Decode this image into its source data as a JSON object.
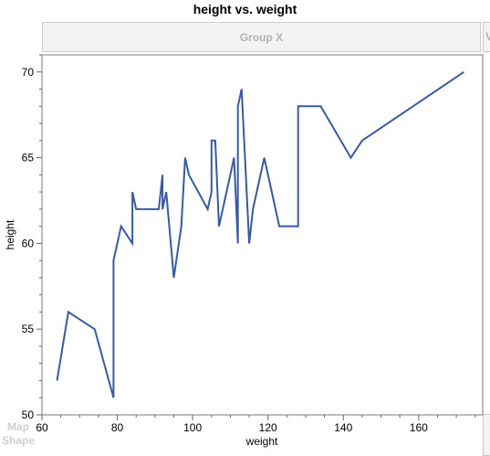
{
  "chart_data": {
    "type": "line",
    "title": "height vs. weight",
    "group_label": "Group X",
    "right_stub_label": "V",
    "map_shape_label_1": "Map",
    "map_shape_label_2": "Shape",
    "xlabel": "weight",
    "ylabel": "height",
    "xlim": [
      60,
      177
    ],
    "ylim": [
      50,
      71
    ],
    "xticks": [
      60,
      80,
      100,
      120,
      140,
      160
    ],
    "yticks": [
      50,
      55,
      60,
      65,
      70
    ],
    "grid": false,
    "line_color": "#3a5aa0",
    "series": [
      {
        "x": [
          64,
          67,
          74,
          79,
          79,
          81,
          84,
          84,
          85,
          91,
          92,
          92,
          93,
          95,
          97,
          98,
          99,
          104,
          105,
          105,
          106,
          107,
          111,
          112,
          112,
          113,
          115,
          116,
          119,
          123,
          128,
          128,
          134,
          142,
          145,
          172
        ],
        "y": [
          52,
          56,
          55,
          51,
          59,
          61,
          60,
          63,
          62,
          62,
          64,
          62,
          63,
          58,
          61,
          65,
          64,
          62,
          63,
          66,
          66,
          61,
          65,
          60,
          68,
          69,
          60,
          62,
          65,
          61,
          61,
          68,
          68,
          65,
          66,
          70
        ]
      }
    ]
  }
}
